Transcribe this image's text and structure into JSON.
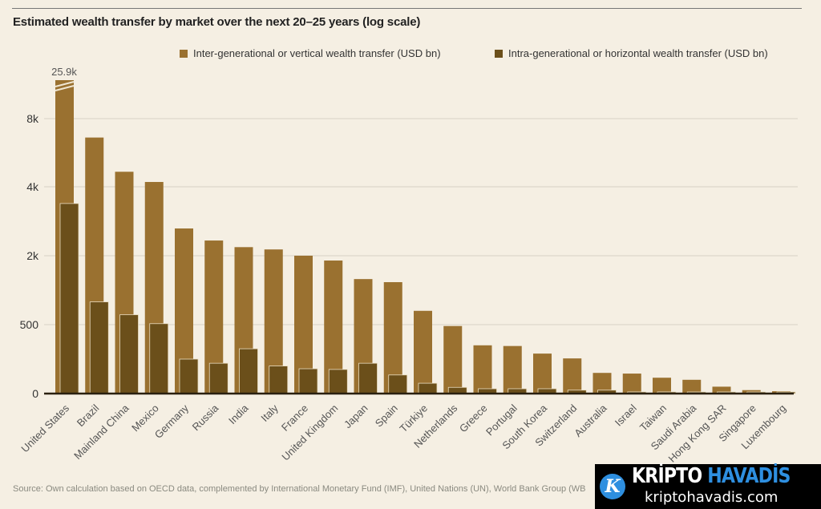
{
  "chart_data": {
    "type": "bar",
    "title": "Estimated wealth transfer by market over the next 20–25 years (log scale)",
    "xlabel": "",
    "ylabel": "",
    "y_scale": "log",
    "y_ticks": [
      0,
      500,
      2000,
      4000,
      8000
    ],
    "y_tick_labels": [
      "0",
      "500",
      "2k",
      "4k",
      "8k"
    ],
    "grid": true,
    "legend_position": "top-right",
    "annotation": "25.9k",
    "categories": [
      "United States",
      "Brazil",
      "Mainland China",
      "Mexico",
      "Germany",
      "Russia",
      "India",
      "Italy",
      "France",
      "United Kingdom",
      "Japan",
      "Spain",
      "Türkiye",
      "Netherlands",
      "Greece",
      "Portugal",
      "South Korea",
      "Switzerland",
      "Australia",
      "Israel",
      "Taiwan",
      "Saudi Arabia",
      "Hong Kong SAR",
      "Singapore",
      "Luxembourg"
    ],
    "series": [
      {
        "name": "Inter-generational or vertical wealth transfer (USD bn)",
        "color": "#9a7130",
        "values": [
          25900,
          6600,
          4660,
          4200,
          2630,
          2330,
          2180,
          2130,
          2000,
          1815,
          1250,
          1175,
          660,
          490,
          350,
          345,
          290,
          255,
          150,
          145,
          115,
          100,
          50,
          25,
          17
        ]
      },
      {
        "name": "Intra-generational or horizontal wealth transfer (USD bn)",
        "color": "#6b4f1a",
        "values": [
          3380,
          790,
          610,
          510,
          250,
          220,
          325,
          200,
          180,
          175,
          220,
          135,
          75,
          45,
          35,
          35,
          35,
          25,
          25,
          12,
          12,
          10,
          6,
          4,
          3
        ]
      }
    ]
  },
  "source": "Source: Own calculation based on OECD data, complemented by International Monetary Fund (IMF), United Nations (UN), World Bank Group (WB",
  "watermark": {
    "brand_a": "KRİPTO",
    "brand_b": "HAVADİS",
    "url": "kriptohavadis.com",
    "logo_letter": "K"
  }
}
